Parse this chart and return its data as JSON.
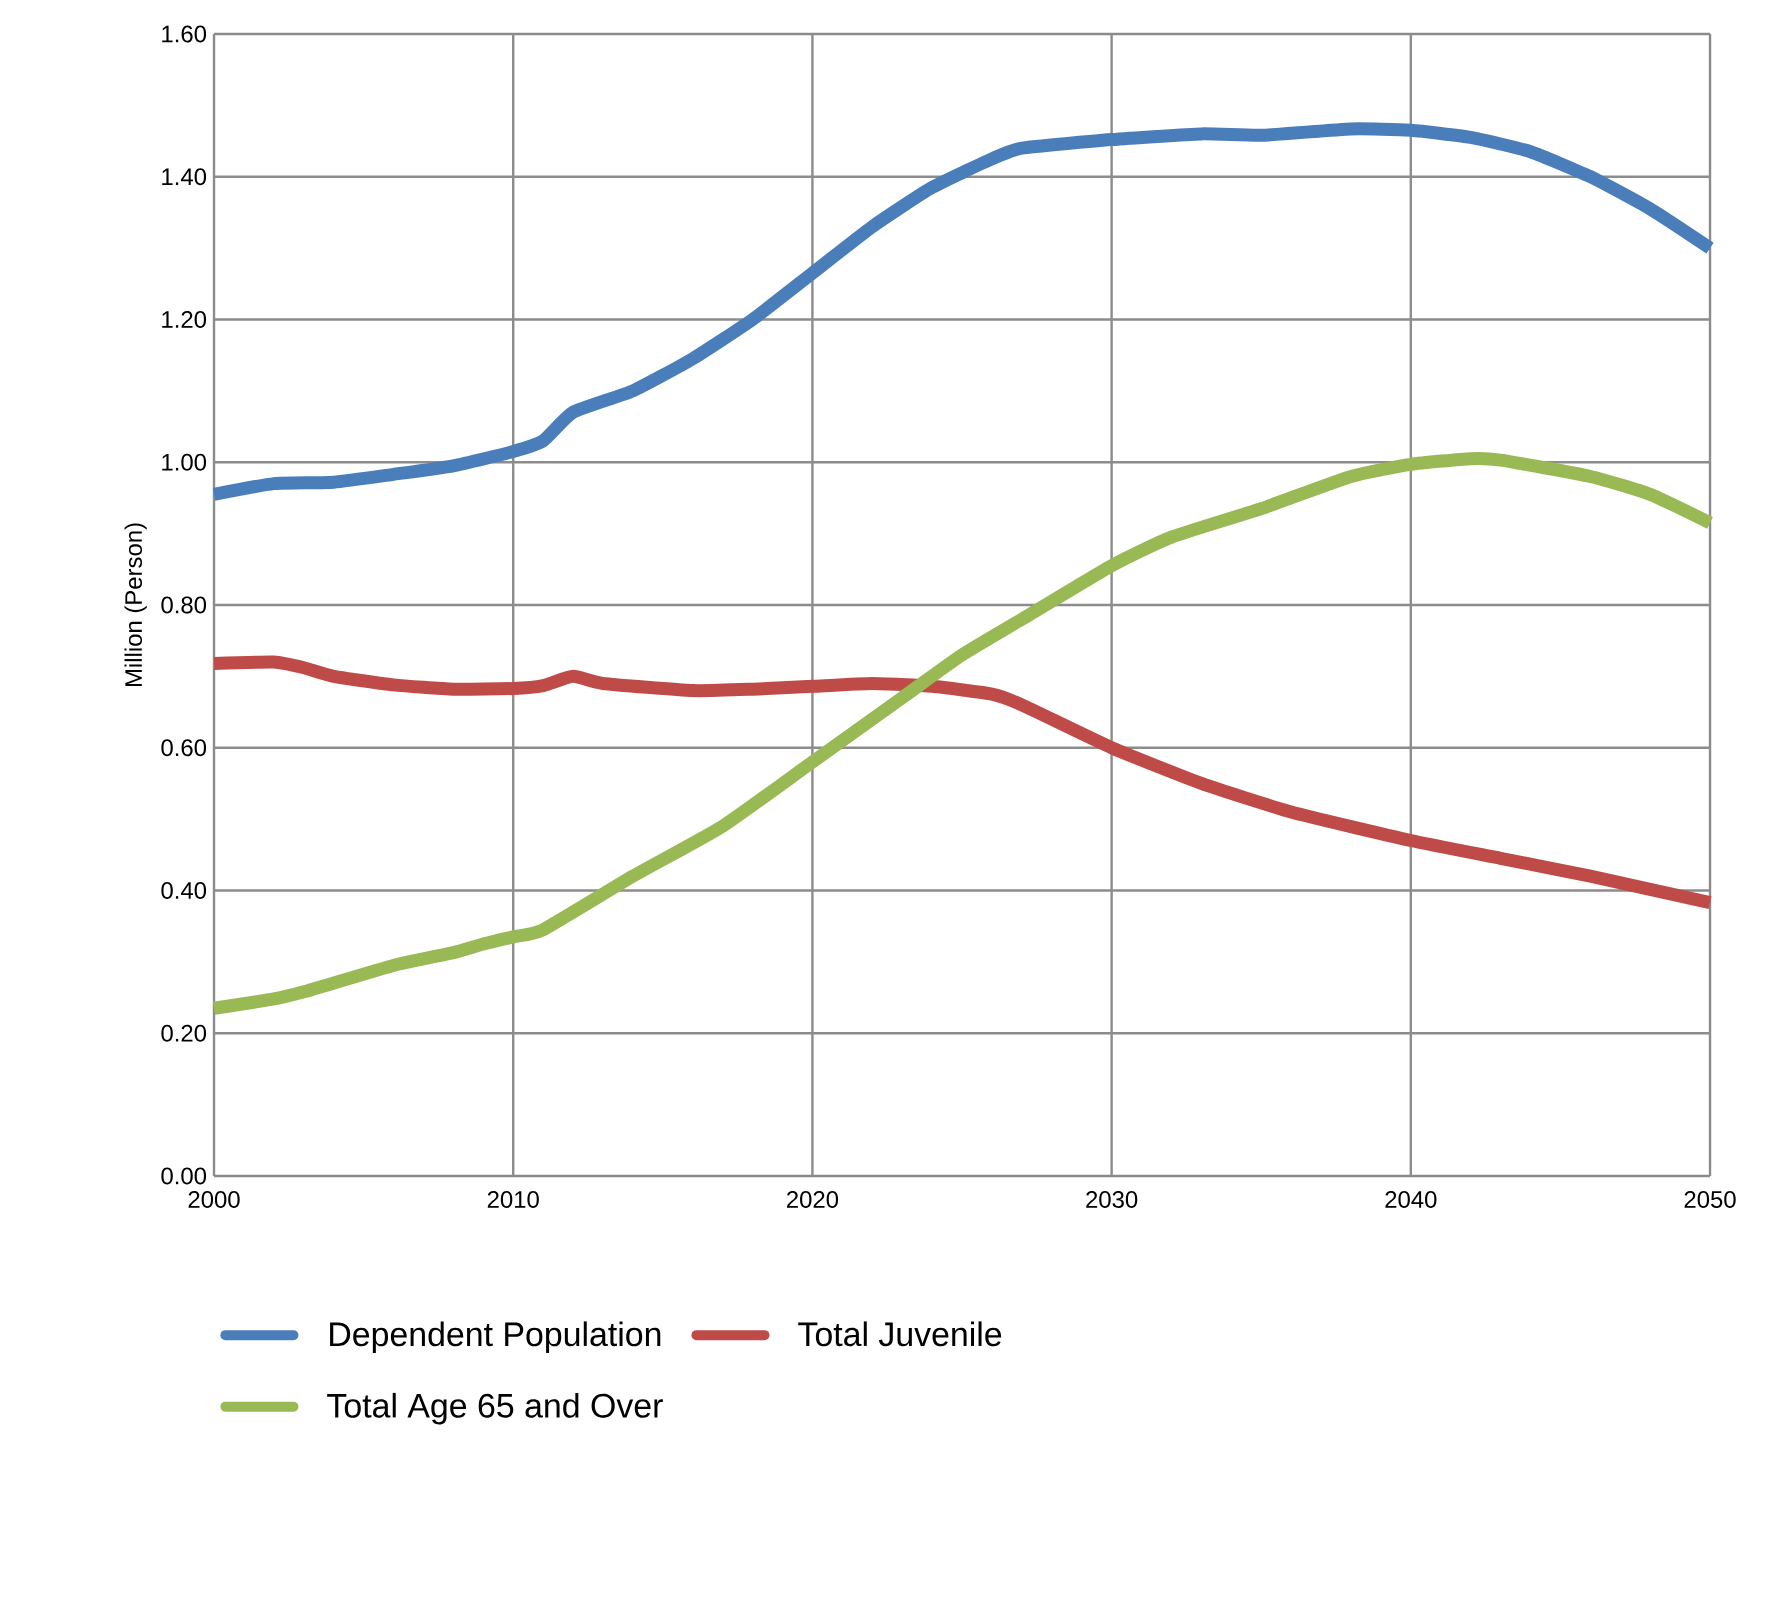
{
  "chart_data": {
    "type": "line",
    "ylabel": "Million (Person)",
    "xlim": [
      2000,
      2050
    ],
    "xticks": [
      2000,
      2010,
      2020,
      2030,
      2040,
      2050
    ],
    "ylim": [
      0,
      1.6
    ],
    "yticks": [
      {
        "value": 0,
        "label": "0.00"
      },
      {
        "value": 0.2,
        "label": "0.20"
      },
      {
        "value": 0.4,
        "label": "0.40"
      },
      {
        "value": 0.6,
        "label": "0.60"
      },
      {
        "value": 0.8,
        "label": "0.80"
      },
      {
        "value": 1.0,
        "label": "1.00"
      },
      {
        "value": 1.2,
        "label": "1.20"
      },
      {
        "value": 1.4,
        "label": "1.40"
      },
      {
        "value": 1.6,
        "label": "1.60"
      }
    ],
    "grid": true,
    "legend": "bottom",
    "marker": "none",
    "line_style": "solid",
    "series": [
      {
        "name": "Dependent Population",
        "color": "#4a7ebb",
        "x": [
          2000,
          2002,
          2004,
          2006,
          2008,
          2010,
          2011,
          2012,
          2014,
          2016,
          2018,
          2020,
          2022,
          2024,
          2026,
          2027,
          2030,
          2033,
          2035,
          2038,
          2040,
          2042,
          2044,
          2046,
          2048,
          2050
        ],
        "values": [
          0.955,
          0.97,
          0.972,
          0.983,
          0.995,
          1.015,
          1.03,
          1.07,
          1.1,
          1.145,
          1.2,
          1.265,
          1.33,
          1.385,
          1.425,
          1.44,
          1.452,
          1.46,
          1.458,
          1.467,
          1.465,
          1.455,
          1.435,
          1.4,
          1.355,
          1.3
        ]
      },
      {
        "name": "Total Juvenile",
        "color": "#be4b48",
        "x": [
          2000,
          2002,
          2003,
          2004,
          2006,
          2008,
          2010,
          2011,
          2012,
          2013,
          2016,
          2018,
          2020,
          2022,
          2024,
          2026,
          2027,
          2030,
          2033,
          2036,
          2040,
          2043,
          2046,
          2050
        ],
        "values": [
          0.718,
          0.72,
          0.712,
          0.7,
          0.688,
          0.682,
          0.683,
          0.687,
          0.7,
          0.69,
          0.68,
          0.682,
          0.686,
          0.69,
          0.686,
          0.675,
          0.66,
          0.6,
          0.55,
          0.51,
          0.47,
          0.445,
          0.42,
          0.383
        ]
      },
      {
        "name": "Total Age 65 and Over",
        "color": "#98b954",
        "x": [
          2000,
          2002,
          2003,
          2006,
          2008,
          2009,
          2010,
          2011,
          2014,
          2017,
          2020,
          2023,
          2025,
          2027,
          2030,
          2032,
          2035,
          2038,
          2040,
          2042,
          2043,
          2046,
          2048,
          2050
        ],
        "values": [
          0.235,
          0.248,
          0.258,
          0.295,
          0.313,
          0.325,
          0.335,
          0.345,
          0.42,
          0.49,
          0.58,
          0.67,
          0.73,
          0.78,
          0.855,
          0.895,
          0.935,
          0.98,
          0.997,
          1.005,
          1.003,
          0.98,
          0.955,
          0.915
        ]
      }
    ]
  }
}
